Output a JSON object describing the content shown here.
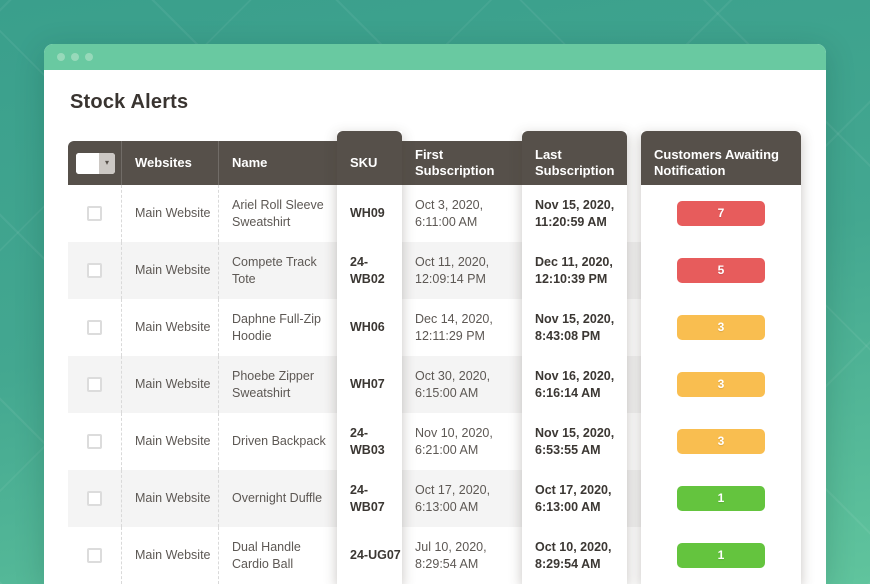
{
  "window": {
    "title": "Stock Alerts",
    "chrome_dots": 3
  },
  "icons": {
    "chevron_down": "▾"
  },
  "table": {
    "headers": {
      "select": "",
      "websites": "Websites",
      "name": "Name",
      "sku": "SKU",
      "first": "First Subscription",
      "last": "Last Subscription",
      "customers": "Customers Awaiting Notification"
    },
    "rows": [
      {
        "website": "Main Website",
        "name": "Ariel Roll Sleeve Sweatshirt",
        "sku": "WH09",
        "first_date": "Oct 3, 2020,",
        "first_time": "6:11:00 AM",
        "last_date": "Nov 15, 2020,",
        "last_time": "11:20:59 AM",
        "count": "7",
        "level": "red"
      },
      {
        "website": "Main Website",
        "name": "Compete Track Tote",
        "sku": "24-WB02",
        "first_date": "Oct 11, 2020,",
        "first_time": "12:09:14 PM",
        "last_date": "Dec 11, 2020,",
        "last_time": "12:10:39 PM",
        "count": "5",
        "level": "red"
      },
      {
        "website": "Main Website",
        "name": "Daphne Full-Zip Hoodie",
        "sku": "WH06",
        "first_date": "Dec 14, 2020,",
        "first_time": "12:11:29 PM",
        "last_date": "Nov 15, 2020,",
        "last_time": "8:43:08 PM",
        "count": "3",
        "level": "yellow"
      },
      {
        "website": "Main Website",
        "name": "Phoebe Zipper Sweatshirt",
        "sku": "WH07",
        "first_date": "Oct 30, 2020,",
        "first_time": "6:15:00 AM",
        "last_date": "Nov 16, 2020,",
        "last_time": "6:16:14 AM",
        "count": "3",
        "level": "yellow"
      },
      {
        "website": "Main Website",
        "name": "Driven Backpack",
        "sku": "24-WB03",
        "first_date": "Nov 10, 2020,",
        "first_time": "6:21:00 AM",
        "last_date": "Nov 15, 2020,",
        "last_time": "6:53:55 AM",
        "count": "3",
        "level": "yellow"
      },
      {
        "website": "Main Website",
        "name": "Overnight Duffle",
        "sku": "24-WB07",
        "first_date": "Oct 17, 2020,",
        "first_time": "6:13:00 AM",
        "last_date": "Oct 17, 2020,",
        "last_time": "6:13:00 AM",
        "count": "1",
        "level": "green"
      },
      {
        "website": "Main Website",
        "name": "Dual Handle Cardio Ball",
        "sku": "24-UG07",
        "first_date": "Jul 10, 2020,",
        "first_time": "8:29:54 AM",
        "last_date": "Oct 10, 2020,",
        "last_time": "8:29:54 AM",
        "count": "1",
        "level": "green"
      }
    ]
  },
  "colors": {
    "background_teal": "#3a9f8c",
    "titlebar_green": "#69c9a1",
    "header_dark": "#56504a",
    "row_stripe": "#f4f4f4",
    "badge_red": "#e75c5c",
    "badge_yellow": "#f9be50",
    "badge_green": "#64c43e"
  }
}
